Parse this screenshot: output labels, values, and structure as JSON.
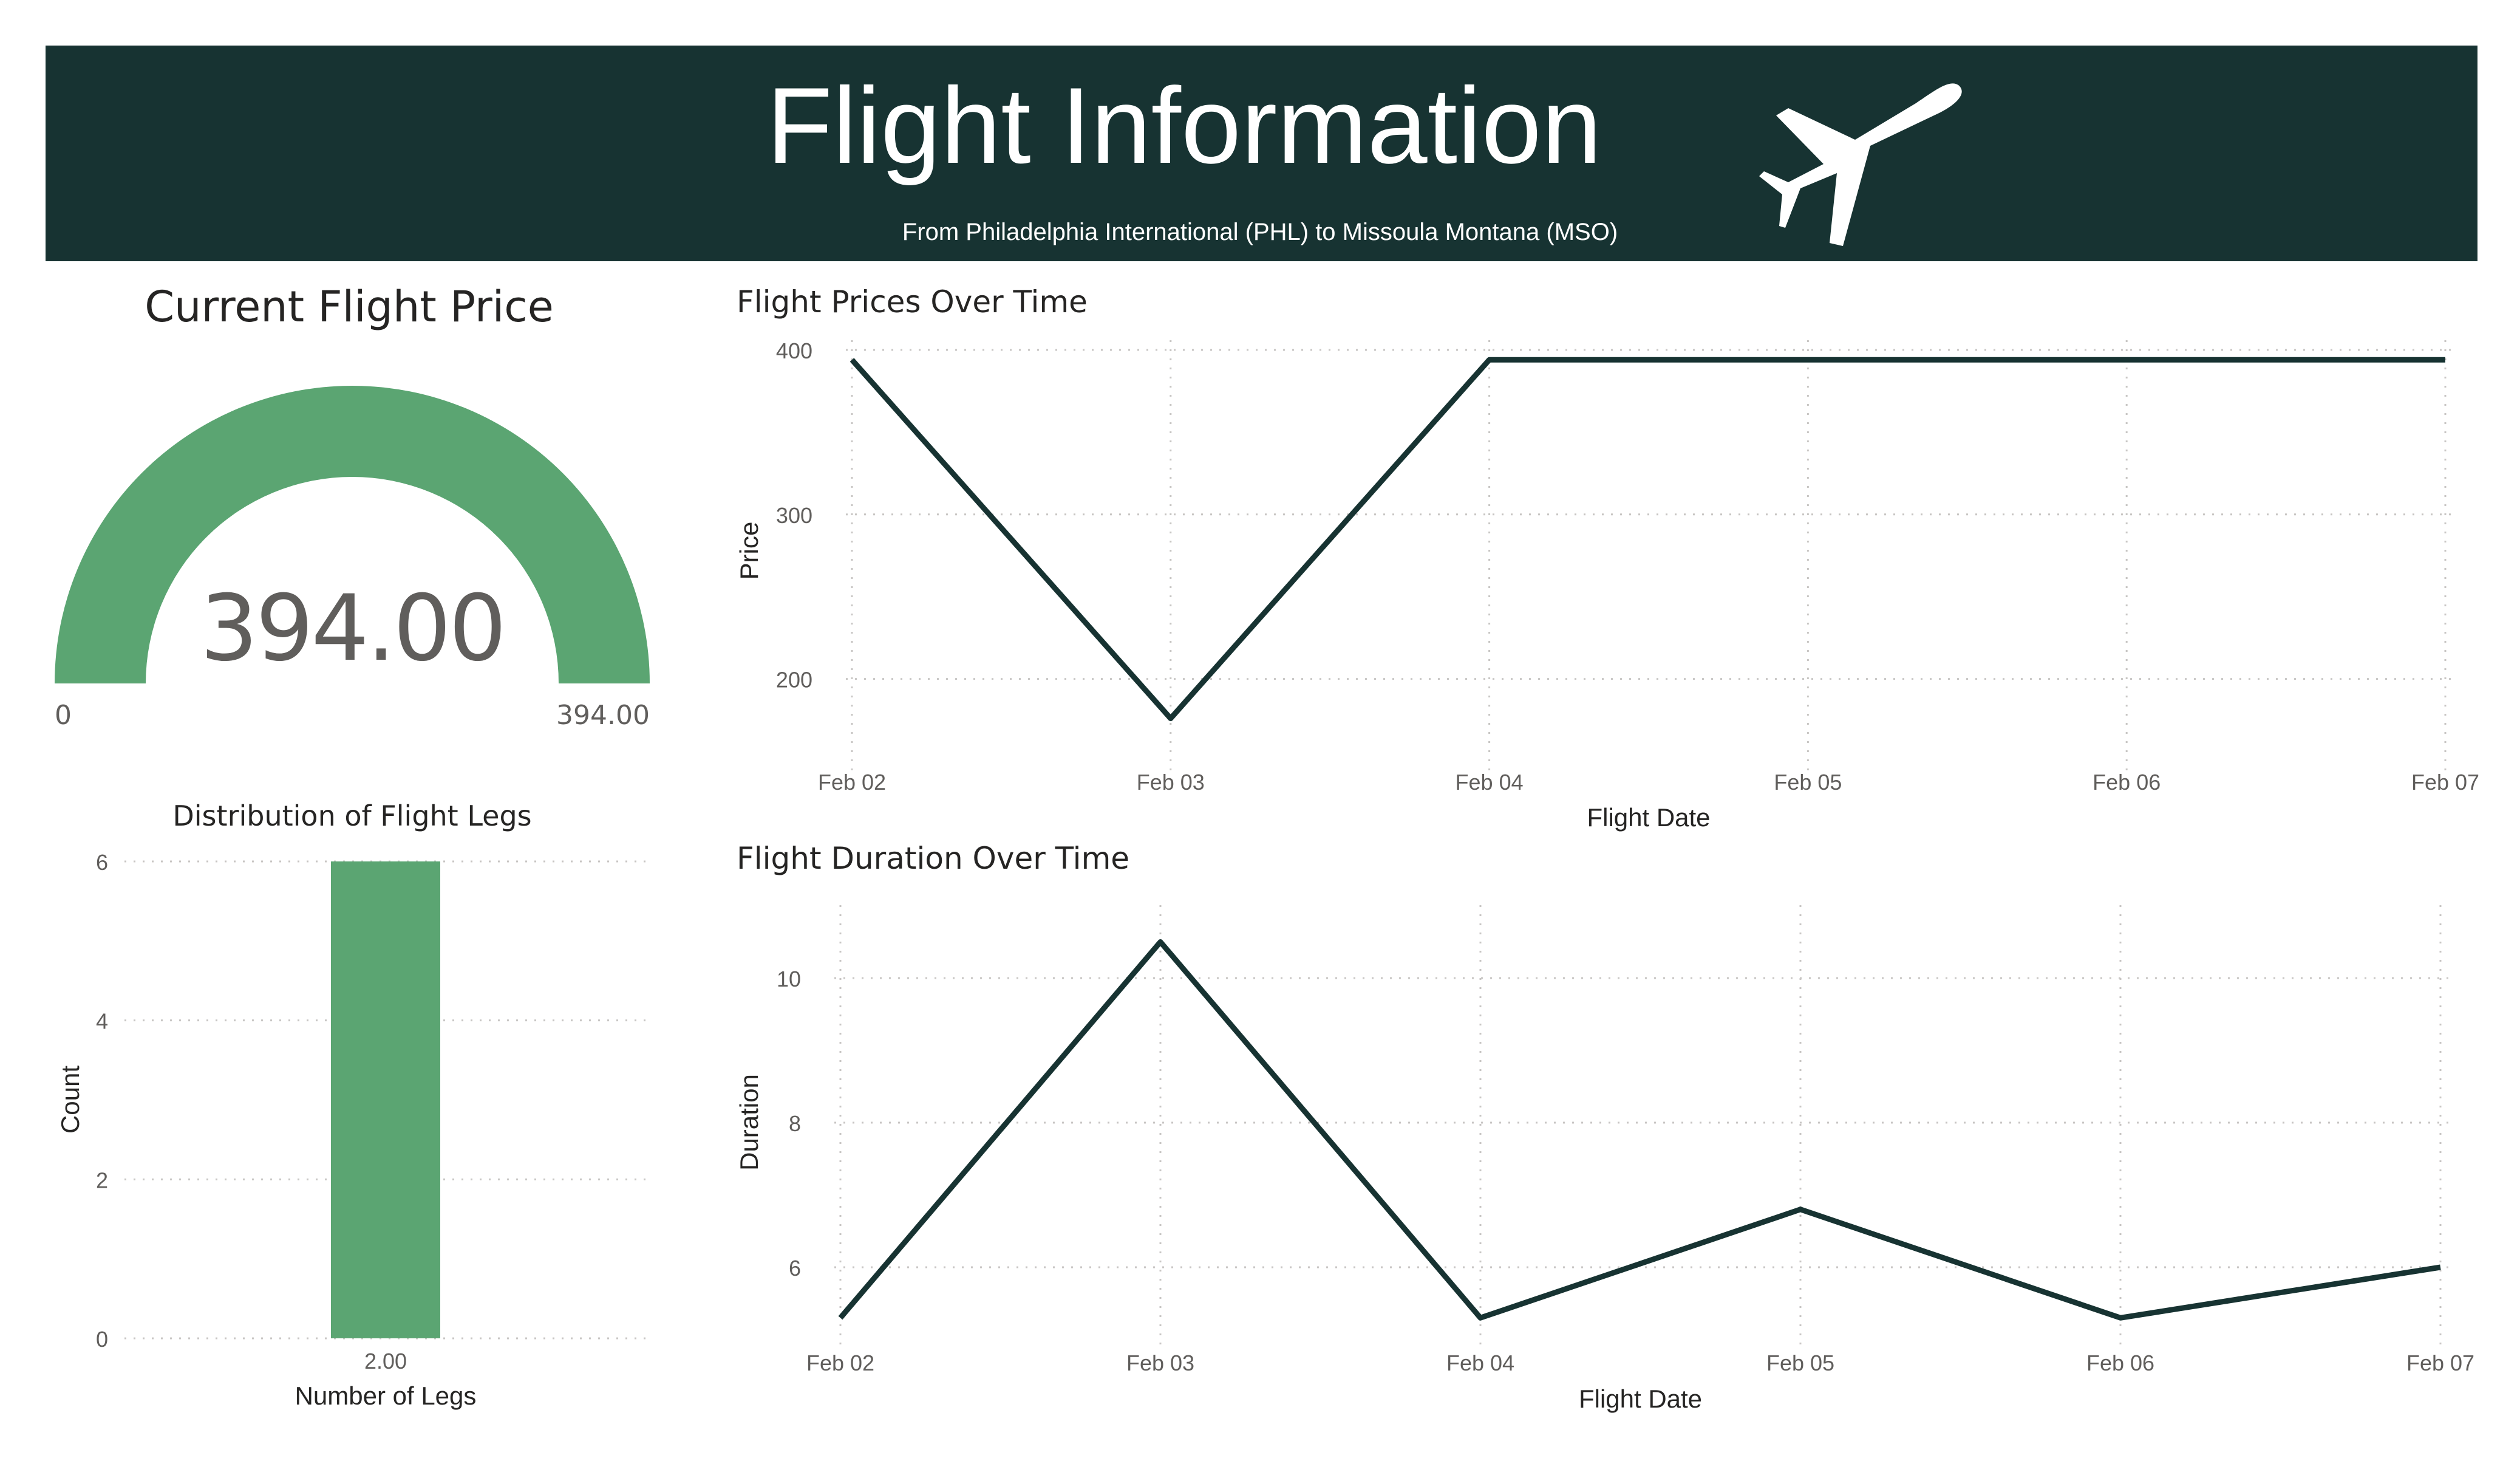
{
  "header": {
    "title": "Flight Information",
    "subtitle": "From Philadelphia International (PHL) to Missoula Montana (MSO)",
    "icon": "airplane-icon",
    "background": "#173332"
  },
  "colors": {
    "accent": "#5ba572",
    "line": "#173332",
    "gauge_track": "#5ba572"
  },
  "gauge": {
    "title": "Current Flight Price",
    "value": "394.00",
    "min": "0",
    "max": "394.00",
    "fill_fraction": 1.0
  },
  "chart_data": [
    {
      "type": "line",
      "title": "Flight Prices Over Time",
      "xlabel": "Flight Date",
      "ylabel": "Price",
      "categories": [
        "Feb 02",
        "Feb 03",
        "Feb 04",
        "Feb 05",
        "Feb 06",
        "Feb 07"
      ],
      "values": [
        394,
        176,
        394,
        394,
        394,
        394
      ],
      "ylim": [
        150,
        400
      ],
      "yticks": [
        200,
        300,
        400
      ],
      "grid": true
    },
    {
      "type": "line",
      "title": "Flight Duration Over Time",
      "xlabel": "Flight Date",
      "ylabel": "Duration",
      "categories": [
        "Feb 02",
        "Feb 03",
        "Feb 04",
        "Feb 05",
        "Feb 06",
        "Feb 07"
      ],
      "values": [
        5.3,
        10.5,
        5.3,
        6.8,
        5.3,
        6.0
      ],
      "ylim": [
        5,
        11
      ],
      "yticks": [
        6,
        8,
        10
      ],
      "grid": true
    },
    {
      "type": "bar",
      "title": "Distribution of Flight Legs",
      "xlabel": "Number of Legs",
      "ylabel": "Count",
      "categories": [
        "2.00"
      ],
      "values": [
        6
      ],
      "ylim": [
        0,
        6
      ],
      "yticks": [
        0,
        2,
        4,
        6
      ],
      "grid": true
    }
  ]
}
